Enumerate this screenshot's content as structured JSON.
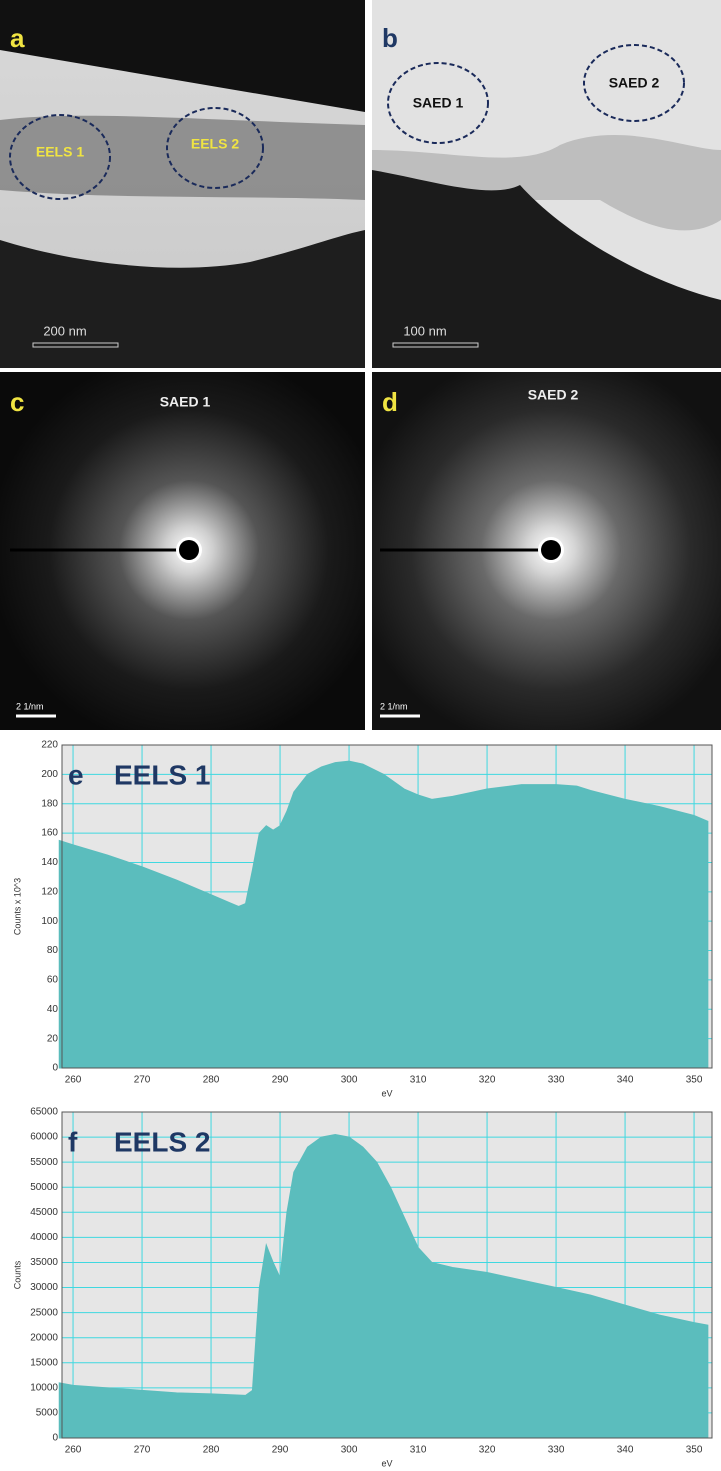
{
  "panels": [
    {
      "letter": "a",
      "labels": [
        "EELS 1",
        "EELS 2"
      ],
      "scale_bar": "200 nm"
    },
    {
      "letter": "b",
      "labels": [
        "SAED 1",
        "SAED 2"
      ],
      "scale_bar": "100 nm"
    },
    {
      "letter": "c",
      "title": "SAED 1",
      "scale_bar": "2 1/nm"
    },
    {
      "letter": "d",
      "title": "SAED 2",
      "scale_bar": "2 1/nm"
    }
  ],
  "chart_data": [
    {
      "type": "area",
      "panel_letter": "e",
      "title": "EELS 1",
      "xlabel": "eV",
      "ylabel": "Counts x 10^3",
      "x": [
        258,
        260,
        265,
        270,
        275,
        280,
        283,
        284,
        285,
        286,
        287,
        288,
        289,
        290,
        291,
        292,
        294,
        296,
        298,
        300,
        302,
        305,
        308,
        310,
        312,
        315,
        318,
        320,
        325,
        330,
        333,
        335,
        340,
        345,
        350,
        352
      ],
      "values": [
        155,
        152,
        145,
        137,
        128,
        118,
        112,
        110,
        112,
        135,
        160,
        165,
        162,
        165,
        175,
        188,
        200,
        205,
        208,
        209,
        207,
        200,
        190,
        186,
        183,
        185,
        188,
        190,
        193,
        193,
        192,
        189,
        183,
        178,
        172,
        168
      ],
      "color": "#5bbdbd",
      "xlim": [
        258.4,
        352.6
      ],
      "ylim": [
        0,
        220
      ],
      "xticks": [
        260,
        270,
        280,
        290,
        300,
        310,
        320,
        330,
        340,
        350
      ],
      "yticks": [
        0,
        20,
        40,
        60,
        80,
        100,
        120,
        140,
        160,
        180,
        200,
        220
      ],
      "grid": true
    },
    {
      "type": "area",
      "panel_letter": "f",
      "title": "EELS 2",
      "xlabel": "eV",
      "ylabel": "Counts",
      "x": [
        258,
        260,
        265,
        270,
        275,
        280,
        285,
        286,
        287,
        288,
        289,
        290,
        291,
        292,
        294,
        296,
        298,
        300,
        302,
        304,
        306,
        308,
        310,
        312,
        315,
        320,
        325,
        330,
        335,
        340,
        345,
        350,
        352
      ],
      "values": [
        11000,
        10500,
        10000,
        9500,
        9000,
        8800,
        8500,
        9500,
        30000,
        38500,
        35000,
        32000,
        45000,
        53000,
        58000,
        60000,
        60500,
        60000,
        58000,
        55000,
        50000,
        44000,
        38000,
        35000,
        34000,
        33000,
        31500,
        30000,
        28500,
        26500,
        24500,
        23000,
        22500
      ],
      "color": "#5bbdbd",
      "xlim": [
        258.4,
        352.6
      ],
      "ylim": [
        0,
        65000
      ],
      "xticks": [
        260,
        270,
        280,
        290,
        300,
        310,
        320,
        330,
        340,
        350
      ],
      "yticks": [
        0,
        5000,
        10000,
        15000,
        20000,
        25000,
        30000,
        35000,
        40000,
        45000,
        50000,
        55000,
        60000,
        65000
      ],
      "grid": true
    }
  ]
}
